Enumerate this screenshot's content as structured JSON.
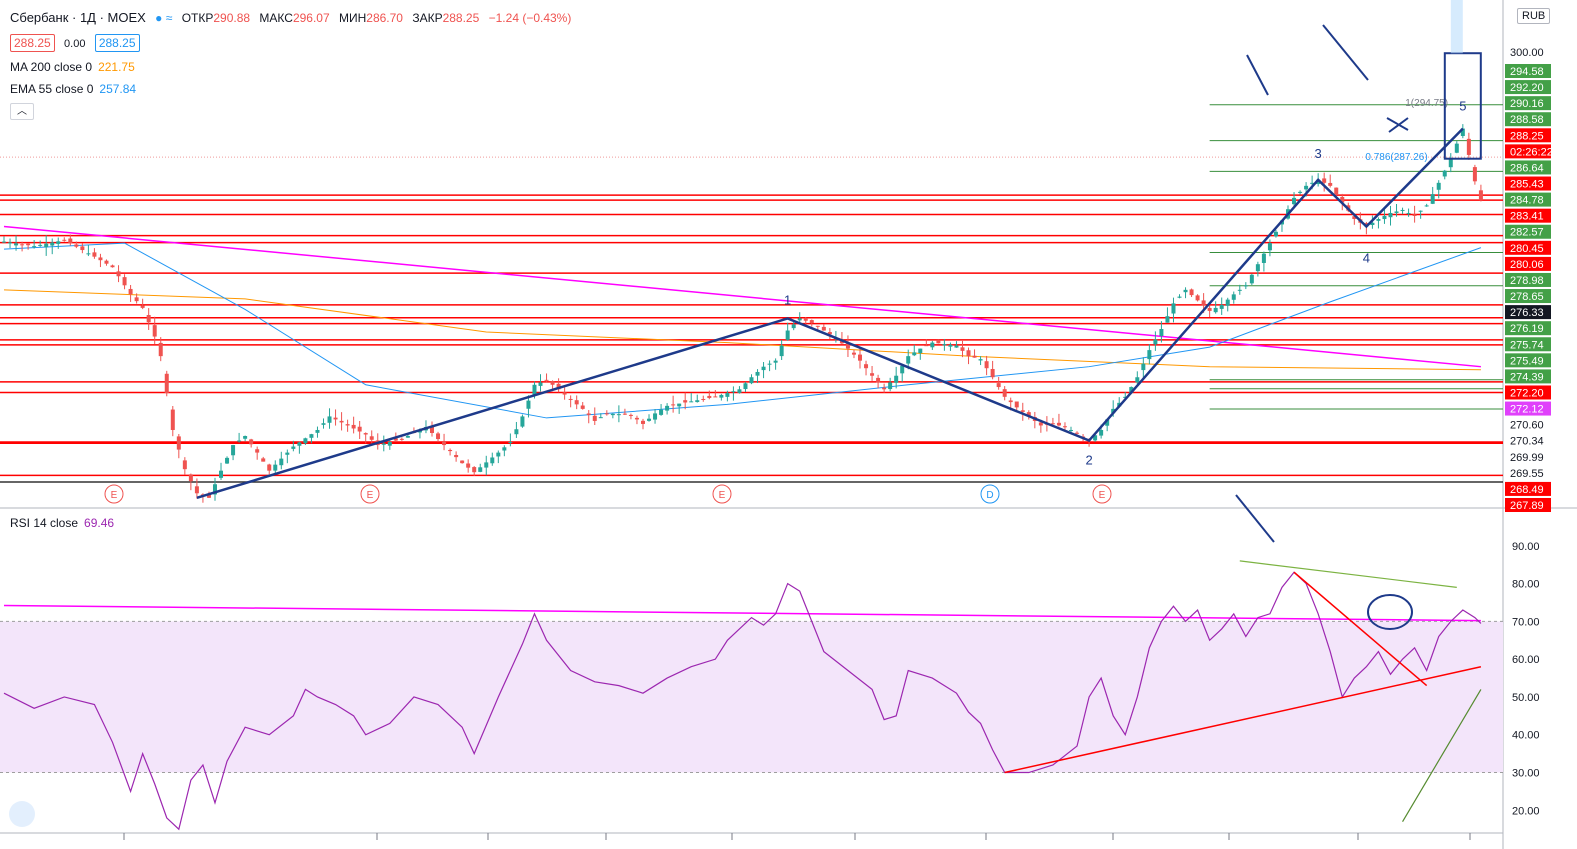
{
  "header": {
    "symbol": "Сбербанк · 1Д · MOEX",
    "o_label": "ОТКР",
    "o": "290.88",
    "h_label": "МАКС",
    "h": "296.07",
    "l_label": "МИН",
    "l": "286.70",
    "c_label": "ЗАКР",
    "c": "288.25",
    "change": "−1.24 (−0.43%)",
    "bid": "288.25",
    "spread": "0.00",
    "ask": "288.25"
  },
  "indicators": {
    "ma_label": "MA 200 close 0",
    "ma_value": "221.75",
    "ema_label": "EMA 55 close 0",
    "ema_value": "257.84",
    "rsi_label": "RSI 14 close",
    "rsi_value": "69.46"
  },
  "currency": "RUB",
  "collapse_icon": "chevron-up-icon",
  "colors": {
    "up": "#26a69a",
    "down": "#ef5350",
    "level": "#ff0000",
    "support": "#388e3c",
    "wave": "#1e3a8a",
    "ma": "#ff9800",
    "ema": "#2196f3",
    "rsi": "#9c27b0",
    "trendline": "#ff00ff"
  },
  "chart_data": [
    {
      "type": "candlestick",
      "title": "Сбербанк · 1Д · MOEX",
      "ylim": [
        267.89,
        301
      ],
      "price_axis_ticks": [
        300.0
      ],
      "price_axis_labels": [
        {
          "value": "294.58",
          "style": "green"
        },
        {
          "value": "292.20",
          "style": "green"
        },
        {
          "value": "290.16",
          "style": "green"
        },
        {
          "value": "288.58",
          "style": "green"
        },
        {
          "value": "288.25",
          "style": "red"
        },
        {
          "value": "02:26:22",
          "style": "red"
        },
        {
          "value": "286.64",
          "style": "green"
        },
        {
          "value": "285.43",
          "style": "red"
        },
        {
          "value": "284.78",
          "style": "green"
        },
        {
          "value": "283.41",
          "style": "red"
        },
        {
          "value": "282.57",
          "style": "green"
        },
        {
          "value": "280.45",
          "style": "red"
        },
        {
          "value": "280.06",
          "style": "red"
        },
        {
          "value": "278.98",
          "style": "green"
        },
        {
          "value": "278.65",
          "style": "green"
        },
        {
          "value": "276.33",
          "style": "black"
        },
        {
          "value": "276.19",
          "style": "green"
        },
        {
          "value": "275.74",
          "style": "green"
        },
        {
          "value": "275.49",
          "style": "green"
        },
        {
          "value": "274.39",
          "style": "green"
        },
        {
          "value": "272.20",
          "style": "red"
        },
        {
          "value": "272.12",
          "style": "magenta"
        },
        {
          "value": "270.60",
          "style": "plain"
        },
        {
          "value": "270.34",
          "style": "plain"
        },
        {
          "value": "269.99",
          "style": "plain"
        },
        {
          "value": "269.55",
          "style": "plain"
        },
        {
          "value": "268.49",
          "style": "red"
        },
        {
          "value": "267.89",
          "style": "red"
        }
      ],
      "wave_labels": [
        "1",
        "2",
        "3",
        "4",
        "5"
      ],
      "fib_labels": [
        "1(294.75)",
        "0.786(287.26)"
      ],
      "event_markers": [
        "E",
        "E",
        "E",
        "D",
        "E"
      ],
      "path": [
        [
          0,
          285.5
        ],
        [
          5,
          285.2
        ],
        [
          10,
          285.6
        ],
        [
          15,
          284.5
        ],
        [
          18,
          283.8
        ],
        [
          21,
          282.0
        ],
        [
          23,
          281.1
        ],
        [
          25,
          279.2
        ],
        [
          26,
          277.9
        ],
        [
          28,
          273.0
        ],
        [
          30,
          270.4
        ],
        [
          32,
          268.8
        ],
        [
          34,
          268.5
        ],
        [
          36,
          270.3
        ],
        [
          38,
          272.0
        ],
        [
          40,
          272.6
        ],
        [
          42,
          271.5
        ],
        [
          44,
          270.3
        ],
        [
          48,
          271.9
        ],
        [
          52,
          273.0
        ],
        [
          54,
          273.9
        ],
        [
          56,
          273.5
        ],
        [
          60,
          272.7
        ],
        [
          62,
          272.0
        ],
        [
          66,
          272.4
        ],
        [
          70,
          273.2
        ],
        [
          74,
          271.6
        ],
        [
          76,
          270.8
        ],
        [
          78,
          270.2
        ],
        [
          82,
          271.5
        ],
        [
          84,
          272.2
        ],
        [
          86,
          273.9
        ],
        [
          88,
          276.0
        ],
        [
          90,
          276.3
        ],
        [
          92,
          275.7
        ],
        [
          94,
          275.0
        ],
        [
          96,
          274.4
        ],
        [
          98,
          273.6
        ],
        [
          100,
          274.1
        ],
        [
          104,
          274.0
        ],
        [
          106,
          273.4
        ],
        [
          108,
          274.1
        ],
        [
          110,
          274.6
        ],
        [
          114,
          274.9
        ],
        [
          118,
          275.2
        ],
        [
          122,
          275.7
        ],
        [
          124,
          276.5
        ],
        [
          126,
          277.2
        ],
        [
          128,
          277.6
        ],
        [
          130,
          279.6
        ],
        [
          132,
          280.4
        ],
        [
          134,
          280.1
        ],
        [
          138,
          279.1
        ],
        [
          140,
          278.4
        ],
        [
          142,
          277.6
        ],
        [
          144,
          276.6
        ],
        [
          146,
          275.7
        ],
        [
          148,
          276.6
        ],
        [
          150,
          277.9
        ],
        [
          152,
          278.4
        ],
        [
          154,
          278.8
        ],
        [
          158,
          278.6
        ],
        [
          160,
          277.9
        ],
        [
          162,
          277.7
        ],
        [
          164,
          276.5
        ],
        [
          166,
          275.2
        ],
        [
          168,
          274.5
        ],
        [
          170,
          273.9
        ],
        [
          172,
          273.3
        ],
        [
          174,
          273.4
        ],
        [
          176,
          273.2
        ],
        [
          178,
          272.8
        ],
        [
          180,
          272.3
        ],
        [
          182,
          273.0
        ],
        [
          184,
          274.4
        ],
        [
          186,
          275.2
        ],
        [
          188,
          276.5
        ],
        [
          190,
          278.3
        ],
        [
          192,
          279.7
        ],
        [
          194,
          281.4
        ],
        [
          196,
          282.3
        ],
        [
          198,
          281.6
        ],
        [
          200,
          280.9
        ],
        [
          202,
          281.3
        ],
        [
          204,
          282.0
        ],
        [
          206,
          282.6
        ],
        [
          208,
          284.0
        ],
        [
          210,
          285.4
        ],
        [
          212,
          286.9
        ],
        [
          214,
          288.4
        ],
        [
          216,
          289.2
        ],
        [
          218,
          289.6
        ],
        [
          220,
          289.2
        ],
        [
          222,
          288.1
        ],
        [
          224,
          287.0
        ],
        [
          226,
          286.5
        ],
        [
          228,
          287.0
        ],
        [
          230,
          287.4
        ],
        [
          232,
          287.6
        ],
        [
          234,
          287.2
        ],
        [
          236,
          287.9
        ],
        [
          238,
          289.4
        ],
        [
          240,
          291.0
        ],
        [
          242,
          293.0
        ],
        [
          244,
          289.5
        ],
        [
          245,
          288.25
        ]
      ],
      "levels": [
        {
          "price": 294.58,
          "kind": "support"
        },
        {
          "price": 292.2,
          "kind": "support"
        },
        {
          "price": 290.16,
          "kind": "support"
        },
        {
          "price": 288.58,
          "kind": "resistance"
        },
        {
          "price": 288.25,
          "kind": "resistance"
        },
        {
          "price": 287.3,
          "kind": "resistance"
        },
        {
          "price": 285.9,
          "kind": "resistance"
        },
        {
          "price": 285.43,
          "kind": "resistance"
        },
        {
          "price": 284.78,
          "kind": "support"
        },
        {
          "price": 283.41,
          "kind": "resistance"
        },
        {
          "price": 282.57,
          "kind": "support"
        },
        {
          "price": 281.3,
          "kind": "resistance"
        },
        {
          "price": 280.45,
          "kind": "resistance"
        },
        {
          "price": 280.06,
          "kind": "resistance"
        },
        {
          "price": 278.98,
          "kind": "resistance"
        },
        {
          "price": 278.65,
          "kind": "resistance"
        },
        {
          "price": 276.33,
          "kind": "support"
        },
        {
          "price": 276.19,
          "kind": "resistance"
        },
        {
          "price": 275.74,
          "kind": "support"
        },
        {
          "price": 275.49,
          "kind": "resistance"
        },
        {
          "price": 274.39,
          "kind": "support"
        },
        {
          "price": 272.2,
          "kind": "resistance"
        },
        {
          "price": 272.12,
          "kind": "resistance"
        },
        {
          "price": 269.99,
          "kind": "resistance"
        },
        {
          "price": 269.55,
          "kind": "black"
        }
      ],
      "ma_200": [
        [
          0,
          282.3
        ],
        [
          20,
          282.0
        ],
        [
          40,
          281.7
        ],
        [
          80,
          279.5
        ],
        [
          120,
          278.8
        ],
        [
          160,
          277.9
        ],
        [
          200,
          277.2
        ],
        [
          245,
          277.0
        ]
      ],
      "ema_55": [
        [
          0,
          285.0
        ],
        [
          20,
          285.4
        ],
        [
          40,
          281.0
        ],
        [
          60,
          276.0
        ],
        [
          90,
          273.8
        ],
        [
          120,
          274.7
        ],
        [
          150,
          276.0
        ],
        [
          180,
          277.2
        ],
        [
          200,
          278.5
        ],
        [
          220,
          281.5
        ],
        [
          245,
          285.1
        ]
      ],
      "magenta_trendline": [
        [
          0,
          286.5
        ],
        [
          245,
          277.2
        ]
      ]
    },
    {
      "type": "line",
      "title": "RSI 14 close",
      "ylim": [
        14,
        100
      ],
      "yticks": [
        90.0,
        80.0,
        70.0,
        60.0,
        50.0,
        40.0,
        30.0,
        20.0
      ],
      "band": [
        30,
        70
      ],
      "series": [
        {
          "name": "RSI 14 close",
          "values": [
            [
              0,
              51
            ],
            [
              5,
              47
            ],
            [
              10,
              50
            ],
            [
              15,
              48
            ],
            [
              18,
              38
            ],
            [
              21,
              25
            ],
            [
              23,
              35
            ],
            [
              25,
              27
            ],
            [
              27,
              18
            ],
            [
              29,
              15
            ],
            [
              31,
              28
            ],
            [
              33,
              32
            ],
            [
              35,
              22
            ],
            [
              37,
              33
            ],
            [
              40,
              42
            ],
            [
              44,
              40
            ],
            [
              48,
              45
            ],
            [
              50,
              52
            ],
            [
              52,
              50
            ],
            [
              55,
              48
            ],
            [
              58,
              45
            ],
            [
              60,
              40
            ],
            [
              64,
              43
            ],
            [
              68,
              50
            ],
            [
              72,
              48
            ],
            [
              76,
              42
            ],
            [
              78,
              35
            ],
            [
              82,
              50
            ],
            [
              86,
              64
            ],
            [
              88,
              72
            ],
            [
              90,
              65
            ],
            [
              94,
              57
            ],
            [
              98,
              54
            ],
            [
              102,
              53
            ],
            [
              106,
              51
            ],
            [
              110,
              55
            ],
            [
              114,
              58
            ],
            [
              118,
              60
            ],
            [
              120,
              65
            ],
            [
              124,
              71
            ],
            [
              126,
              69
            ],
            [
              128,
              72
            ],
            [
              130,
              80
            ],
            [
              132,
              78
            ],
            [
              134,
              70
            ],
            [
              136,
              62
            ],
            [
              140,
              57
            ],
            [
              144,
              52
            ],
            [
              146,
              44
            ],
            [
              148,
              45
            ],
            [
              150,
              57
            ],
            [
              154,
              55
            ],
            [
              158,
              51
            ],
            [
              160,
              46
            ],
            [
              162,
              43
            ],
            [
              164,
              36
            ],
            [
              166,
              30
            ],
            [
              170,
              30
            ],
            [
              174,
              32
            ],
            [
              178,
              37
            ],
            [
              180,
              50
            ],
            [
              182,
              55
            ],
            [
              184,
              45
            ],
            [
              186,
              40
            ],
            [
              188,
              50
            ],
            [
              190,
              63
            ],
            [
              192,
              70
            ],
            [
              194,
              74
            ],
            [
              196,
              70
            ],
            [
              198,
              73
            ],
            [
              200,
              65
            ],
            [
              202,
              68
            ],
            [
              204,
              72
            ],
            [
              206,
              66
            ],
            [
              208,
              71
            ],
            [
              210,
              72
            ],
            [
              212,
              79
            ],
            [
              214,
              83
            ],
            [
              216,
              80
            ],
            [
              218,
              72
            ],
            [
              220,
              62
            ],
            [
              222,
              50
            ],
            [
              224,
              55
            ],
            [
              226,
              58
            ],
            [
              228,
              62
            ],
            [
              230,
              56
            ],
            [
              232,
              60
            ],
            [
              234,
              63
            ],
            [
              236,
              57
            ],
            [
              238,
              66
            ],
            [
              240,
              70
            ],
            [
              242,
              73
            ],
            [
              244,
              71
            ],
            [
              245,
              69.46
            ]
          ]
        }
      ],
      "magenta_trendline": [
        [
          0,
          74.2
        ],
        [
          245,
          70.2
        ]
      ]
    }
  ]
}
